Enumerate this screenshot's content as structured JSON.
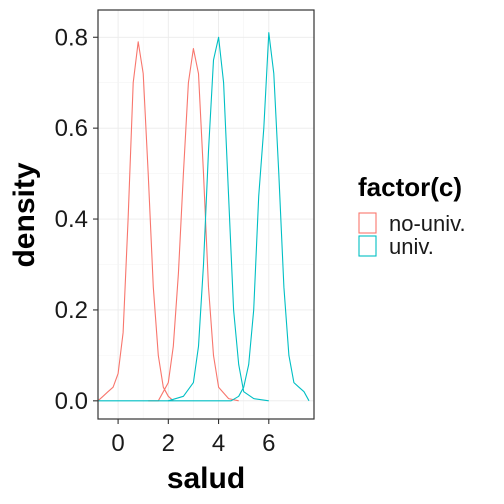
{
  "chart_data": {
    "type": "line",
    "xlabel": "salud",
    "ylabel": "density",
    "xlim": [
      -0.8,
      7.8
    ],
    "ylim": [
      -0.04,
      0.86
    ],
    "x_ticks": [
      0,
      2,
      4,
      6
    ],
    "y_ticks": [
      0.0,
      0.2,
      0.4,
      0.6,
      0.8
    ],
    "y_tick_labels": [
      "0.0",
      "0.2",
      "0.4",
      "0.6",
      "0.8"
    ],
    "grid": true,
    "legend": {
      "title": "factor(c)",
      "position": "right",
      "entries": [
        {
          "label": "no-univ.",
          "color": "#F8766D"
        },
        {
          "label": "univ.",
          "color": "#00BFC4"
        }
      ]
    },
    "series": [
      {
        "group": "no-univ.",
        "color": "#F8766D",
        "x": [
          -0.8,
          -0.6,
          -0.4,
          -0.2,
          0.0,
          0.2,
          0.4,
          0.6,
          0.8,
          1.0,
          1.2,
          1.4,
          1.6,
          1.8,
          2.0,
          2.2
        ],
        "y": [
          0.0,
          0.01,
          0.02,
          0.03,
          0.06,
          0.15,
          0.4,
          0.7,
          0.79,
          0.72,
          0.5,
          0.25,
          0.1,
          0.03,
          0.01,
          0.0
        ]
      },
      {
        "group": "no-univ.",
        "color": "#F8766D",
        "x": [
          1.2,
          1.6,
          2.0,
          2.2,
          2.4,
          2.6,
          2.8,
          3.0,
          3.2,
          3.4,
          3.6,
          3.8,
          4.0,
          4.4,
          4.8
        ],
        "y": [
          0.0,
          0.0,
          0.04,
          0.12,
          0.28,
          0.5,
          0.7,
          0.775,
          0.72,
          0.5,
          0.25,
          0.1,
          0.03,
          0.005,
          0.0
        ]
      },
      {
        "group": "univ.",
        "color": "#00BFC4",
        "x": [
          2.0,
          2.6,
          3.0,
          3.2,
          3.4,
          3.6,
          3.8,
          4.0,
          4.2,
          4.4,
          4.6,
          4.8,
          5.0,
          5.4,
          6.0
        ],
        "y": [
          0.0,
          0.01,
          0.04,
          0.12,
          0.3,
          0.55,
          0.75,
          0.8,
          0.7,
          0.45,
          0.2,
          0.08,
          0.02,
          0.005,
          0.0
        ]
      },
      {
        "group": "univ.",
        "color": "#00BFC4",
        "x": [
          -0.8,
          0.5,
          1.5,
          2.5,
          3.0,
          3.5,
          4.0,
          4.5,
          4.8,
          5.0,
          5.2,
          5.4,
          5.6,
          5.8,
          6.0,
          6.2,
          6.4,
          6.6,
          6.8,
          7.0,
          7.2,
          7.4,
          7.6
        ],
        "y": [
          0.0,
          0.0,
          0.0,
          0.0,
          0.0,
          0.0,
          0.0,
          0.0,
          0.01,
          0.03,
          0.08,
          0.2,
          0.45,
          0.6,
          0.81,
          0.72,
          0.5,
          0.25,
          0.1,
          0.04,
          0.03,
          0.02,
          0.0
        ]
      }
    ]
  }
}
